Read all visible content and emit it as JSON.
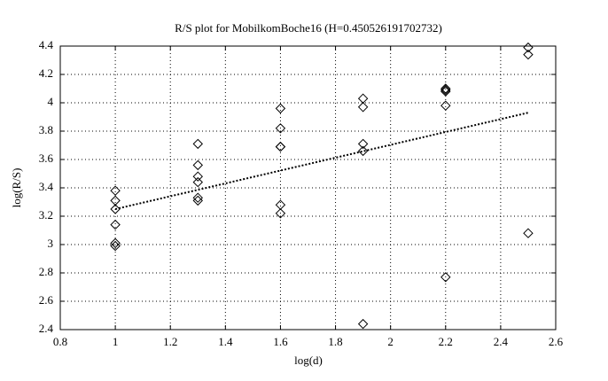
{
  "chart_data": {
    "type": "scatter",
    "title": "R/S plot for MobilkomBoche16 (H=0.450526191702732)",
    "x_label": "log(d)",
    "y_label": "log(R/S)",
    "xlim": [
      0.8,
      2.6
    ],
    "xticks": [
      0.8,
      1,
      1.2,
      1.4,
      1.6,
      1.8,
      2,
      2.2,
      2.4,
      2.6
    ],
    "ylim": [
      2.4,
      4.4
    ],
    "yticks": [
      2.4,
      2.6,
      2.8,
      3,
      3.2,
      3.4,
      3.6,
      3.8,
      4,
      4.2,
      4.4
    ],
    "grid": true,
    "series": [
      {
        "mode": "markers",
        "marker": "diamond",
        "color": "#000000",
        "x": [
          1,
          1,
          1,
          1,
          1,
          1,
          1.3,
          1.3,
          1.3,
          1.3,
          1.3,
          1.3,
          1.6,
          1.6,
          1.6,
          1.6,
          1.6,
          1.6,
          1.9,
          1.9,
          1.9,
          1.9,
          1.9,
          2.2,
          2.2,
          2.2,
          2.2,
          2.2,
          2.5,
          2.5,
          2.5
        ],
        "values": [
          3.38,
          3.31,
          3.25,
          3.14,
          3.01,
          2.99,
          3.71,
          3.56,
          3.48,
          3.44,
          3.33,
          3.31,
          3.96,
          3.82,
          3.69,
          3.69,
          3.28,
          3.22,
          4.03,
          3.97,
          3.71,
          3.66,
          2.44,
          4.1,
          4.09,
          4.08,
          3.98,
          2.77,
          4.39,
          4.34,
          3.08
        ]
      },
      {
        "mode": "line",
        "style": "dotted",
        "color": "#000000",
        "x": [
          1,
          2.5
        ],
        "values": [
          3.25,
          3.93
        ]
      }
    ]
  }
}
